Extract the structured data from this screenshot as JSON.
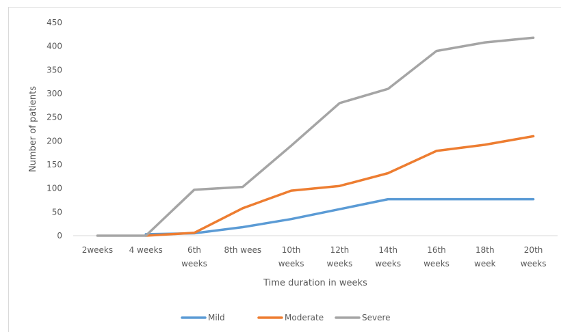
{
  "chart_data": {
    "type": "line",
    "title": "",
    "xlabel": "Time duration in weeks",
    "ylabel": "Number of patients",
    "ylim": [
      0,
      450
    ],
    "yticks": [
      0,
      50,
      100,
      150,
      200,
      250,
      300,
      350,
      400,
      450
    ],
    "grid": false,
    "legend_position": "bottom",
    "categories": [
      "2weeks",
      "4 weeks",
      "6th weeks",
      "8th wees",
      "10th weeks",
      "12th weeks",
      "14th weeks",
      "16th weeks",
      "18th week",
      "20th weeks"
    ],
    "category_lines": [
      [
        "2weeks"
      ],
      [
        "4 weeks"
      ],
      [
        "6th",
        "weeks"
      ],
      [
        "8th wees"
      ],
      [
        "10th",
        "weeks"
      ],
      [
        "12th",
        "weeks"
      ],
      [
        "14th",
        "weeks"
      ],
      [
        "16th",
        "weeks"
      ],
      [
        "18th",
        "week"
      ],
      [
        "20th",
        "weeks"
      ]
    ],
    "series": [
      {
        "name": "Mild",
        "color": "#5b9bd5",
        "values": [
          null,
          3,
          5,
          18,
          35,
          56,
          77,
          77,
          77,
          77
        ]
      },
      {
        "name": "Moderate",
        "color": "#ed7d31",
        "values": [
          null,
          0,
          6,
          58,
          95,
          105,
          132,
          179,
          192,
          210
        ]
      },
      {
        "name": "Severe",
        "color": "#a5a5a5",
        "values": [
          0,
          0,
          97,
          103,
          190,
          280,
          310,
          390,
          408,
          418
        ]
      }
    ]
  }
}
